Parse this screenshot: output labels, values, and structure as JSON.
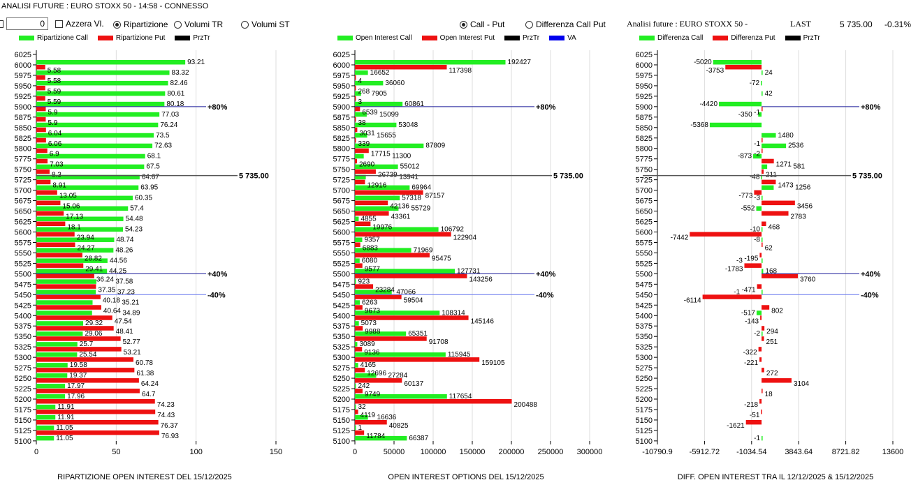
{
  "header": {
    "title": "ANALISI FUTURE : EURO STOXX 50 - 14:58 - CONNESSO",
    "number_value": "0",
    "azzera_label": "Azzera Vl.",
    "mode_options": [
      {
        "label": "Ripartizione",
        "selected": true
      },
      {
        "label": "Volumi TR",
        "selected": false
      },
      {
        "label": "Volumi ST",
        "selected": false
      }
    ],
    "view_options": [
      {
        "label": "Call - Put",
        "selected": true
      },
      {
        "label": "Differenza Call Put",
        "selected": false
      }
    ],
    "future_label": "Analisi future : EURO STOXX 50 -",
    "last_label": "LAST",
    "last_value": "5 735.00",
    "change": "-0.31%"
  },
  "colors": {
    "call": "#22ee22",
    "put": "#ee1111",
    "przTr": "#000000",
    "va": "#0000ee",
    "grid": "#dddddd"
  },
  "chart_data": [
    {
      "type": "bar",
      "orientation": "horizontal",
      "title": "RIPARTIZIONE OPEN INTEREST DEL 15/12/2025",
      "legend": [
        "Ripartizione Call",
        "Ripartizione Put",
        "PrzTr"
      ],
      "xlim": [
        0,
        150
      ],
      "xticks": [
        "0",
        "50",
        "100",
        "150"
      ],
      "categories": [
        6025,
        6000,
        5975,
        5950,
        5925,
        5900,
        5875,
        5850,
        5825,
        5800,
        5775,
        5750,
        5725,
        5700,
        5675,
        5650,
        5625,
        5600,
        5575,
        5550,
        5525,
        5500,
        5475,
        5450,
        5425,
        5400,
        5375,
        5350,
        5325,
        5300,
        5275,
        5250,
        5225,
        5200,
        5175,
        5150,
        5125,
        5100
      ],
      "series": [
        {
          "name": "Ripartizione Call",
          "values": [
            null,
            93.21,
            83.32,
            82.46,
            80.61,
            80.18,
            77.03,
            76.24,
            73.5,
            72.63,
            68.1,
            67.5,
            64.67,
            63.95,
            60.35,
            57.4,
            54.48,
            54.23,
            48.74,
            48.26,
            44.56,
            44.25,
            37.58,
            37.23,
            35.21,
            34.89,
            29.32,
            29.06,
            25.7,
            25.54,
            19.58,
            19.37,
            17.97,
            17.96,
            11.91,
            11.91,
            11.05,
            11.05
          ]
        },
        {
          "name": "Ripartizione Put",
          "values": [
            null,
            5.58,
            5.58,
            5.59,
            5.59,
            5.9,
            5.9,
            6.04,
            6.06,
            6.9,
            7.03,
            8.3,
            8.91,
            13.05,
            15.06,
            17.13,
            18.1,
            23.94,
            24.27,
            28.82,
            29.41,
            36.24,
            37.35,
            40.18,
            40.64,
            47.54,
            48.41,
            52.77,
            53.21,
            60.78,
            61.38,
            64.24,
            64.7,
            74.23,
            74.43,
            76.37,
            76.93,
            null
          ]
        }
      ],
      "annotations": [
        {
          "strike": 5900,
          "label": "+80%",
          "kind": "va"
        },
        {
          "strike": 5735,
          "label": "5 735.00",
          "kind": "przTr"
        },
        {
          "strike": 5500,
          "label": "+40%",
          "kind": "va"
        },
        {
          "strike": 5450,
          "label": "-40%",
          "kind": "va"
        }
      ]
    },
    {
      "type": "bar",
      "orientation": "horizontal",
      "title": "OPEN INTEREST OPTIONS DEL 15/12/2025",
      "legend": [
        "Open Interest Call",
        "Open Interest Put",
        "PrzTr",
        "VA"
      ],
      "xlim": [
        0,
        300000
      ],
      "xticks": [
        "0",
        "50000",
        "100000",
        "150000",
        "200000",
        "250000",
        "300000"
      ],
      "categories": [
        6025,
        6000,
        5975,
        5950,
        5925,
        5900,
        5875,
        5850,
        5825,
        5800,
        5775,
        5750,
        5725,
        5700,
        5675,
        5650,
        5625,
        5600,
        5575,
        5550,
        5525,
        5500,
        5475,
        5450,
        5425,
        5400,
        5375,
        5350,
        5325,
        5300,
        5275,
        5250,
        5225,
        5200,
        5175,
        5150,
        5125,
        5100
      ],
      "series": [
        {
          "name": "Open Interest Call",
          "values": [
            null,
            192427,
            16652,
            36060,
            7905,
            60861,
            15099,
            53048,
            15655,
            87809,
            11300,
            55012,
            13941,
            69964,
            57318,
            55729,
            4855,
            106792,
            9357,
            71969,
            6080,
            127731,
            923,
            47066,
            6263,
            108314,
            5073,
            65351,
            3089,
            115945,
            4165,
            27284,
            242,
            117654,
            32,
            16636,
            1,
            66387
          ]
        },
        {
          "name": "Open Interest Put",
          "values": [
            null,
            117398,
            4,
            268,
            3,
            6539,
            38,
            3031,
            339,
            17715,
            2690,
            26739,
            12916,
            87157,
            42136,
            43361,
            19976,
            122904,
            6883,
            95475,
            9577,
            143256,
            23284,
            59504,
            9673,
            145146,
            9988,
            91708,
            9136,
            159105,
            12696,
            60137,
            9749,
            200488,
            4119,
            40825,
            11784,
            null
          ]
        }
      ],
      "annotations": [
        {
          "strike": 5900,
          "label": "+80%",
          "kind": "va"
        },
        {
          "strike": 5735,
          "label": "5 735.00",
          "kind": "przTr"
        },
        {
          "strike": 5500,
          "label": "+40%",
          "kind": "va"
        },
        {
          "strike": 5450,
          "label": "-40%",
          "kind": "va"
        }
      ]
    },
    {
      "type": "bar",
      "orientation": "horizontal",
      "title": "DIFF. OPEN INTEREST TRA IL 12/12/2025 & 15/12/2025",
      "legend": [
        "Differenza Call",
        "Differenza Put",
        "PrzTr"
      ],
      "xlim": [
        -10790.9,
        13600
      ],
      "xticks": [
        "-10790.9",
        "-5912.72",
        "-1034.54",
        "3843.64",
        "8721.82",
        "13600"
      ],
      "xtick_values": [
        -10790.9,
        -5912.72,
        -1034.54,
        3843.64,
        8721.82,
        13600
      ],
      "categories": [
        6025,
        6000,
        5975,
        5950,
        5925,
        5900,
        5875,
        5850,
        5825,
        5800,
        5775,
        5750,
        5725,
        5700,
        5675,
        5650,
        5625,
        5600,
        5575,
        5550,
        5525,
        5500,
        5475,
        5450,
        5425,
        5400,
        5375,
        5350,
        5325,
        5300,
        5275,
        5250,
        5225,
        5200,
        5175,
        5150,
        5125,
        5100
      ],
      "series": [
        {
          "name": "Differenza Call",
          "values": [
            null,
            -5020,
            24,
            -72,
            42,
            -4420,
            -350,
            -5368,
            1480,
            2536,
            -873,
            581,
            -48,
            1256,
            -3,
            -552,
            null,
            -10,
            -8,
            null,
            -3,
            168,
            null,
            -1,
            null,
            -517,
            null,
            -2,
            null,
            null,
            null,
            null,
            null,
            null,
            null,
            null,
            null,
            -1
          ]
        },
        {
          "name": "Differenza Put",
          "values": [
            null,
            -3753,
            null,
            null,
            null,
            -1,
            null,
            null,
            -1,
            -2,
            1271,
            211,
            1473,
            -773,
            3456,
            2783,
            468,
            -7442,
            62,
            -195,
            -1783,
            3760,
            -471,
            -6114,
            802,
            -143,
            294,
            251,
            -322,
            -221,
            272,
            3104,
            18,
            -218,
            -51,
            -1621,
            null,
            null
          ]
        }
      ],
      "annotations": [
        {
          "strike": 5900,
          "label": "+80%",
          "kind": "va"
        },
        {
          "strike": 5735,
          "label": "5 735.00",
          "kind": "przTr"
        },
        {
          "strike": 5500,
          "label": "+40%",
          "kind": "va"
        },
        {
          "strike": 5450,
          "label": "-40%",
          "kind": "va"
        }
      ]
    }
  ]
}
